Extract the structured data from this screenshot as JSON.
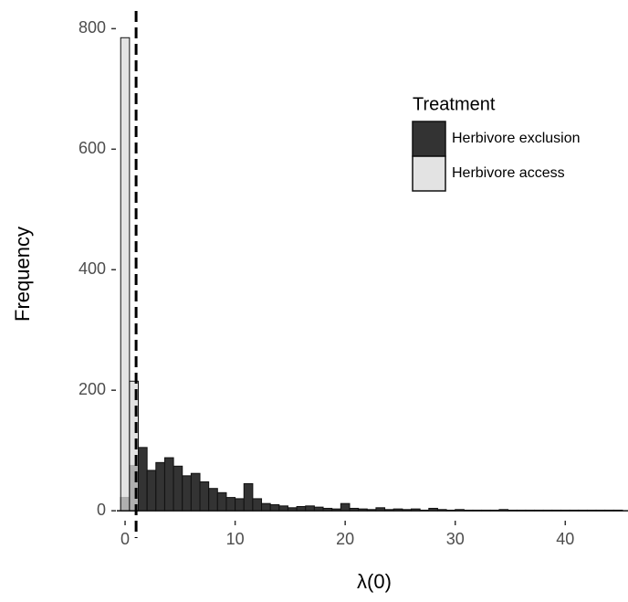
{
  "chart_data": {
    "type": "histogram",
    "xlabel": "λ(0)",
    "ylabel": "Frequency",
    "legend_title": "Treatment",
    "legend_position": "top-right",
    "bins": [
      -0.4,
      0.4,
      1.2,
      2.0,
      2.8,
      3.6,
      4.4,
      5.2,
      6.0,
      6.8,
      7.6,
      8.4,
      9.2,
      10.0,
      10.8,
      11.6,
      12.4,
      13.2,
      14.0,
      14.8,
      15.6,
      16.4,
      17.2,
      18.0,
      18.8,
      19.6,
      20.4,
      21.2,
      22.0,
      22.8,
      23.6,
      24.4,
      25.2,
      26.0,
      26.8,
      27.6,
      28.4,
      29.2,
      30.0,
      30.8,
      31.6,
      32.4,
      33.2,
      34.0,
      34.8,
      35.6,
      36.4,
      37.2,
      38.0,
      38.8,
      39.6,
      40.4,
      41.2,
      42.0,
      42.8,
      43.6,
      44.4,
      45.2
    ],
    "series": [
      {
        "name": "Herbivore exclusion",
        "color": "#333333",
        "opacity": 1,
        "values": [
          22,
          75,
          105,
          67,
          80,
          88,
          74,
          58,
          62,
          48,
          37,
          30,
          22,
          20,
          45,
          20,
          12,
          10,
          8,
          5,
          7,
          8,
          6,
          4,
          3,
          12,
          4,
          3,
          2,
          5,
          2,
          3,
          2,
          3,
          1,
          4,
          2,
          1,
          2,
          1,
          1,
          1,
          1,
          2,
          1,
          1,
          1,
          1,
          1,
          1,
          1,
          1,
          1,
          1,
          1,
          1,
          1
        ]
      },
      {
        "name": "Herbivore access",
        "color": "#d9d9d9",
        "opacity": 0.75,
        "values": [
          785,
          215,
          0,
          0,
          0,
          0,
          0,
          0,
          0,
          0,
          0,
          0,
          0,
          0,
          0,
          0,
          0,
          0,
          0,
          0,
          0,
          0,
          0,
          0,
          0,
          0,
          0,
          0,
          0,
          0,
          0,
          0,
          0,
          0,
          0,
          0,
          0,
          0,
          0,
          0,
          0,
          0,
          0,
          0,
          0,
          0,
          0,
          0,
          0,
          0,
          0,
          0,
          0,
          0,
          0,
          0,
          0
        ]
      }
    ],
    "reference_line": 1,
    "xlim": [
      -0.75,
      45.7
    ],
    "ylim": [
      -15,
      840
    ],
    "xticks": [
      0,
      10,
      20,
      30,
      40
    ],
    "yticks": [
      0,
      200,
      400,
      600,
      800
    ]
  }
}
